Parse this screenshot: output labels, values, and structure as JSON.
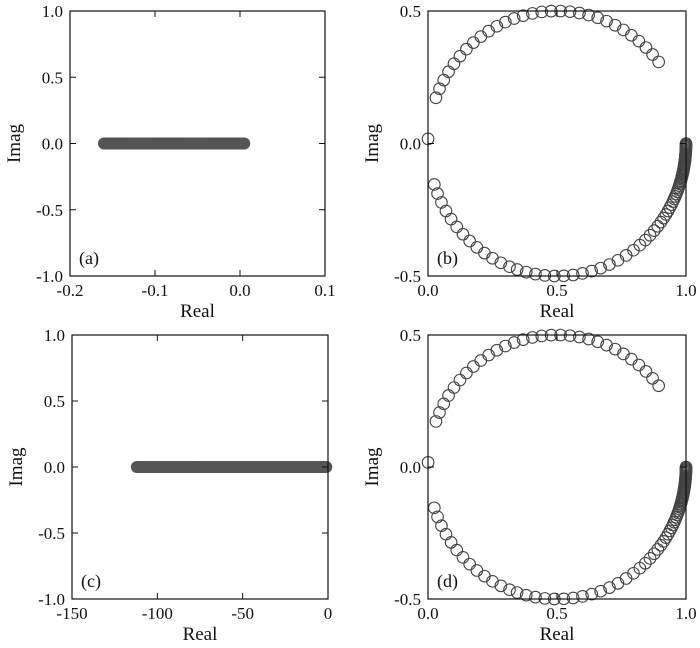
{
  "chart_data": [
    {
      "panel": "a",
      "type": "scatter",
      "panel_label": "(a)",
      "xlabel": "Real",
      "ylabel": "Imag",
      "xlim": [
        -0.2,
        0.1
      ],
      "ylim": [
        -1.0,
        1.0
      ],
      "xticks": [
        -0.2,
        -0.1,
        0.0,
        0.1
      ],
      "xtick_labels": [
        "-0.2",
        "-0.1",
        "0.0",
        "0.1"
      ],
      "yticks": [
        -1.0,
        -0.5,
        0.0,
        0.5,
        1.0
      ],
      "ytick_labels": [
        "-1.0",
        "-0.5",
        "0.0",
        "0.5",
        "1.0"
      ],
      "marker": "filled",
      "color": "#555555",
      "series": [
        {
          "segment_real": [
            -0.16,
            0.005
          ],
          "imag": 0.0,
          "note_points": "dense continuous band of filled markers"
        }
      ]
    },
    {
      "panel": "b",
      "type": "scatter",
      "panel_label": "(b)",
      "xlabel": "Real",
      "ylabel": "Imag",
      "xlim": [
        0.0,
        1.0
      ],
      "ylim": [
        -0.5,
        0.5
      ],
      "xticks": [
        0.0,
        0.5,
        1.0
      ],
      "xtick_labels": [
        "0.0",
        "0.5",
        "1.0"
      ],
      "yticks": [
        -0.5,
        0.0,
        0.5
      ],
      "ytick_labels": [
        "-0.5",
        "0.0",
        "0.5"
      ],
      "marker": "open-circle",
      "color": "#444444",
      "circle": {
        "center": [
          0.5,
          0.0
        ],
        "radius": 0.5
      },
      "series": [
        {
          "name": "",
          "angle_deg_ranges": [
            [
              38,
              162
            ],
            [
              178,
              182
            ],
            [
              198,
              250
            ],
            [
              252,
              360
            ]
          ],
          "dense_from_deg": 300
        }
      ]
    },
    {
      "panel": "c",
      "type": "scatter",
      "panel_label": "(c)",
      "xlabel": "Real",
      "ylabel": "Imag",
      "xlim": [
        -150,
        0
      ],
      "ylim": [
        -1.0,
        1.0
      ],
      "xticks": [
        -150,
        -100,
        -50,
        0
      ],
      "xtick_labels": [
        "-150",
        "-100",
        "-50",
        "0"
      ],
      "yticks": [
        -1.0,
        -0.5,
        0.0,
        0.5,
        1.0
      ],
      "ytick_labels": [
        "-1.0",
        "-0.5",
        "0.0",
        "0.5",
        "1.0"
      ],
      "marker": "filled",
      "color": "#555555",
      "series": [
        {
          "segment_real": [
            -112,
            -1
          ],
          "imag": 0.0,
          "note_points": "dense continuous band of filled markers"
        }
      ]
    },
    {
      "panel": "d",
      "type": "scatter",
      "panel_label": "(d)",
      "xlabel": "Real",
      "ylabel": "Imag",
      "xlim": [
        0.0,
        1.0
      ],
      "ylim": [
        -0.5,
        0.5
      ],
      "xticks": [
        0.0,
        0.5,
        1.0
      ],
      "xtick_labels": [
        "0.0",
        "0.5",
        "1.0"
      ],
      "yticks": [
        -0.5,
        0.0,
        0.5
      ],
      "ytick_labels": [
        "-0.5",
        "0.0",
        "0.5"
      ],
      "marker": "open-circle",
      "color": "#444444",
      "circle": {
        "center": [
          0.5,
          0.0
        ],
        "radius": 0.5
      },
      "series": [
        {
          "name": "",
          "angle_deg_ranges": [
            [
              38,
              162
            ],
            [
              178,
              182
            ],
            [
              198,
              250
            ],
            [
              252,
              360
            ]
          ],
          "dense_from_deg": 300
        }
      ]
    }
  ]
}
